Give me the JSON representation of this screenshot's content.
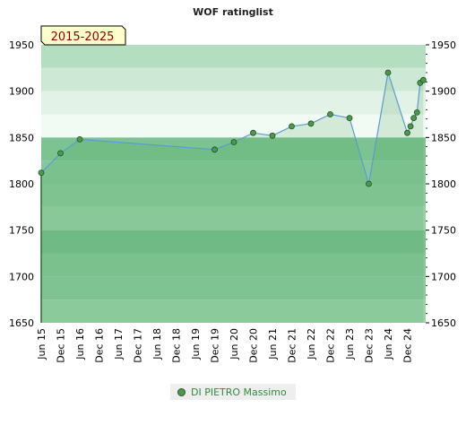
{
  "chart_data": {
    "type": "line",
    "title": "WOF ratinglist",
    "badge": "2015-2025",
    "ylim": [
      1650,
      1950
    ],
    "y_ticks": [
      1650,
      1700,
      1750,
      1800,
      1850,
      1900,
      1950
    ],
    "x_tick_labels": [
      "Jun 15",
      "Dec 15",
      "Jun 16",
      "Dec 16",
      "Jun 17",
      "Dec 17",
      "Jun 18",
      "Dec 18",
      "Jun 19",
      "Dec 19",
      "Jun 20",
      "Dec 20",
      "Jun 21",
      "Dec 21",
      "Jun 22",
      "Dec 22",
      "Jun 23",
      "Dec 23",
      "Jun 24",
      "Dec 24"
    ],
    "series": [
      {
        "name": "DI PIETRO Massimo",
        "color": "#4a9a4a",
        "points": [
          {
            "x": "2015-06",
            "y": 1812
          },
          {
            "x": "2015-12",
            "y": 1833
          },
          {
            "x": "2016-06",
            "y": 1848
          },
          {
            "x": "2019-12",
            "y": 1837
          },
          {
            "x": "2020-06",
            "y": 1845
          },
          {
            "x": "2020-12",
            "y": 1855
          },
          {
            "x": "2021-06",
            "y": 1852
          },
          {
            "x": "2021-12",
            "y": 1862
          },
          {
            "x": "2022-06",
            "y": 1865
          },
          {
            "x": "2022-12",
            "y": 1875
          },
          {
            "x": "2023-06",
            "y": 1871
          },
          {
            "x": "2023-12",
            "y": 1800
          },
          {
            "x": "2024-06",
            "y": 1920
          },
          {
            "x": "2024-12",
            "y": 1855
          },
          {
            "x": "2025-01",
            "y": 1862
          },
          {
            "x": "2025-02",
            "y": 1871
          },
          {
            "x": "2025-03",
            "y": 1877
          },
          {
            "x": "2025-04",
            "y": 1909
          },
          {
            "x": "2025-05",
            "y": 1912
          }
        ]
      }
    ],
    "legend": [
      "DI PIETRO Massimo"
    ],
    "colors": {
      "band_light": "#b8dfc0",
      "band_mid": "#a4d4ae",
      "band_dark": "#88c999",
      "line": "#5b9bd5",
      "marker": "#4a9a4a"
    }
  }
}
